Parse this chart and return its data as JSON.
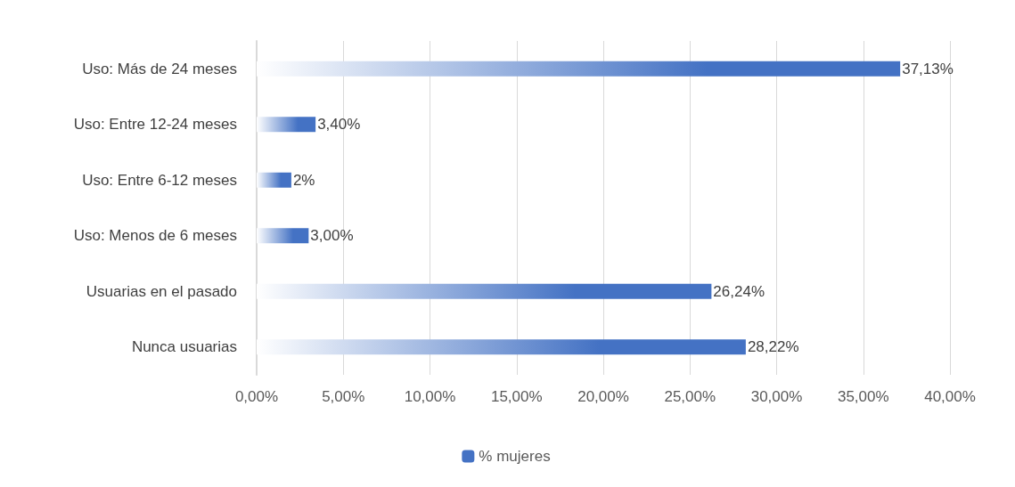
{
  "chart_data": {
    "type": "bar",
    "orientation": "horizontal",
    "categories": [
      "Uso: Más de 24 meses",
      "Uso: Entre 12-24 meses",
      "Uso: Entre 6-12 meses",
      "Uso: Menos de 6 meses",
      "Usuarias en el pasado",
      "Nunca usuarias"
    ],
    "series": [
      {
        "name": "% mujeres",
        "color": "#4472c4",
        "values": [
          37.13,
          3.4,
          2,
          3.0,
          26.24,
          28.22
        ],
        "value_labels": [
          "37,13%",
          "3,40%",
          "2%",
          "3,00%",
          "26,24%",
          "28,22%"
        ]
      }
    ],
    "xlim": [
      0,
      40
    ],
    "xticks": [
      {
        "value": 0,
        "label": "0,00%"
      },
      {
        "value": 5,
        "label": "5,00%"
      },
      {
        "value": 10,
        "label": "10,00%"
      },
      {
        "value": 15,
        "label": "15,00%"
      },
      {
        "value": 20,
        "label": "20,00%"
      },
      {
        "value": 25,
        "label": "25,00%"
      },
      {
        "value": 30,
        "label": "30,00%"
      },
      {
        "value": 35,
        "label": "35,00%"
      },
      {
        "value": 40,
        "label": "40,00%"
      }
    ],
    "grid": "x",
    "legend": "bottom"
  }
}
